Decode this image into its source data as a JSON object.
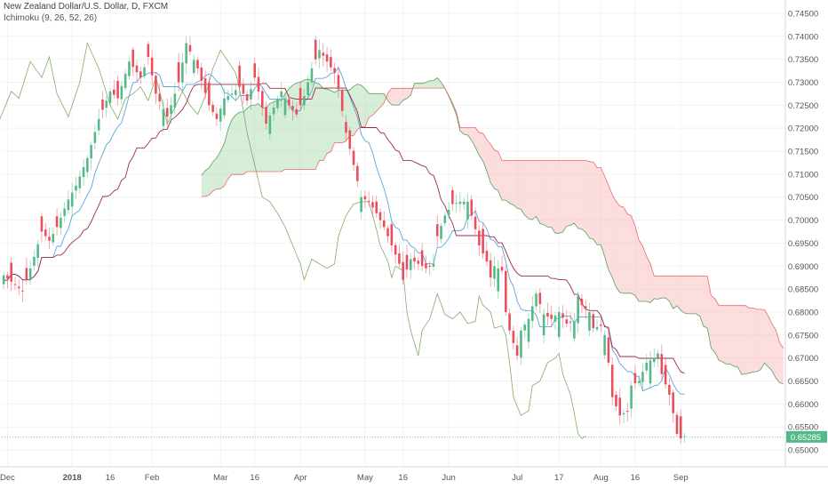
{
  "header": {
    "title": "New Zealand Dollar/U.S. Dollar, D, FXCM",
    "indicator": "Ichimoku (9, 26, 52, 26)"
  },
  "colors": {
    "up": "#53b987",
    "down": "#eb4d5c",
    "conversion": "#5aa6dc",
    "base": "#9c2b4b",
    "lagging": "#7aa05a",
    "span_a": "#5aa05a",
    "span_b": "#e86a6a",
    "cloud_bull": "#a5d6a7",
    "cloud_bear": "#f8b4b4",
    "last_price_bg": "#53b987"
  },
  "chart_data": {
    "type": "candlestick",
    "symbol": "NZDUSD",
    "timeframe": "D",
    "ylim": [
      0.6475,
      0.7475
    ],
    "y_ticks": [
      "0.65000",
      "0.65500",
      "0.66000",
      "0.66500",
      "0.67000",
      "0.67500",
      "0.68000",
      "0.68500",
      "0.69000",
      "0.69500",
      "0.70000",
      "0.70500",
      "0.71000",
      "0.71500",
      "0.72000",
      "0.72500",
      "0.73000",
      "0.73500",
      "0.74000",
      "0.74500"
    ],
    "x_ticks": [
      {
        "label": "Dec",
        "bar": 1
      },
      {
        "label": "2018",
        "bar": 18
      },
      {
        "label": "16",
        "bar": 28
      },
      {
        "label": "Feb",
        "bar": 39
      },
      {
        "label": "Mar",
        "bar": 57
      },
      {
        "label": "16",
        "bar": 66
      },
      {
        "label": "Apr",
        "bar": 78
      },
      {
        "label": "May",
        "bar": 95
      },
      {
        "label": "16",
        "bar": 105
      },
      {
        "label": "Jun",
        "bar": 117
      },
      {
        "label": "Jul",
        "bar": 135
      },
      {
        "label": "17",
        "bar": 146
      },
      {
        "label": "Aug",
        "bar": 157
      },
      {
        "label": "16",
        "bar": 166
      },
      {
        "label": "Sep",
        "bar": 178
      }
    ],
    "last_price": "0.65285",
    "last_price_value": 0.65285,
    "close_anchors": [
      [
        0,
        0.688
      ],
      [
        5,
        0.6845
      ],
      [
        8,
        0.692
      ],
      [
        10,
        0.6975
      ],
      [
        12,
        0.6955
      ],
      [
        14,
        0.6985
      ],
      [
        17,
        0.7045
      ],
      [
        19,
        0.7075
      ],
      [
        22,
        0.7135
      ],
      [
        25,
        0.722
      ],
      [
        28,
        0.728
      ],
      [
        30,
        0.7265
      ],
      [
        33,
        0.7345
      ],
      [
        36,
        0.731
      ],
      [
        38,
        0.7355
      ],
      [
        40,
        0.7275
      ],
      [
        43,
        0.7225
      ],
      [
        46,
        0.73
      ],
      [
        48,
        0.7385
      ],
      [
        51,
        0.733
      ],
      [
        54,
        0.725
      ],
      [
        56,
        0.722
      ],
      [
        58,
        0.7265
      ],
      [
        60,
        0.7275
      ],
      [
        62,
        0.729
      ],
      [
        64,
        0.726
      ],
      [
        66,
        0.731
      ],
      [
        67,
        0.728
      ],
      [
        69,
        0.721
      ],
      [
        71,
        0.7245
      ],
      [
        73,
        0.728
      ],
      [
        75,
        0.725
      ],
      [
        77,
        0.723
      ],
      [
        79,
        0.727
      ],
      [
        81,
        0.733
      ],
      [
        83,
        0.737
      ],
      [
        85,
        0.7345
      ],
      [
        87,
        0.732
      ],
      [
        88,
        0.7285
      ],
      [
        90,
        0.719
      ],
      [
        92,
        0.712
      ],
      [
        94,
        0.705
      ],
      [
        96,
        0.704
      ],
      [
        98,
        0.7015
      ],
      [
        100,
        0.6985
      ],
      [
        102,
        0.6945
      ],
      [
        104,
        0.6905
      ],
      [
        105,
        0.687
      ],
      [
        107,
        0.6915
      ],
      [
        109,
        0.6905
      ],
      [
        111,
        0.6895
      ],
      [
        113,
        0.6905
      ],
      [
        114,
        0.6965
      ],
      [
        116,
        0.701
      ],
      [
        118,
        0.7035
      ],
      [
        120,
        0.704
      ],
      [
        122,
        0.704
      ],
      [
        124,
        0.698
      ],
      [
        125,
        0.6945
      ],
      [
        127,
        0.691
      ],
      [
        128,
        0.6875
      ],
      [
        129,
        0.69
      ],
      [
        131,
        0.689
      ],
      [
        132,
        0.68
      ],
      [
        133,
        0.676
      ],
      [
        135,
        0.6705
      ],
      [
        136,
        0.676
      ],
      [
        138,
        0.6785
      ],
      [
        140,
        0.684
      ],
      [
        142,
        0.6795
      ],
      [
        144,
        0.6785
      ],
      [
        146,
        0.68
      ],
      [
        148,
        0.6775
      ],
      [
        150,
        0.678
      ],
      [
        151,
        0.6835
      ],
      [
        152,
        0.6815
      ],
      [
        154,
        0.68
      ],
      [
        155,
        0.6765
      ],
      [
        157,
        0.677
      ],
      [
        158,
        0.675
      ],
      [
        159,
        0.669
      ],
      [
        160,
        0.6615
      ],
      [
        162,
        0.6575
      ],
      [
        164,
        0.6585
      ],
      [
        165,
        0.664
      ],
      [
        167,
        0.665
      ],
      [
        169,
        0.669
      ],
      [
        171,
        0.67
      ],
      [
        172,
        0.671
      ],
      [
        173,
        0.6665
      ],
      [
        175,
        0.662
      ],
      [
        176,
        0.658
      ],
      [
        177,
        0.6535
      ],
      [
        178,
        0.6525
      ],
      [
        179,
        0.653
      ]
    ],
    "indicators": {
      "lines": [
        "Conversion Line",
        "Base Line",
        "Lagging Span",
        "Leading Span A",
        "Leading Span B"
      ]
    }
  }
}
